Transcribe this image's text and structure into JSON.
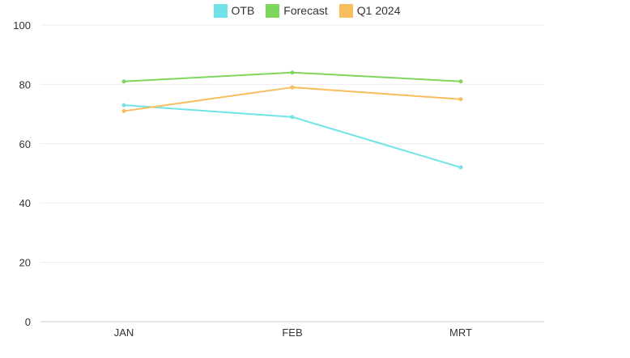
{
  "chart_data": {
    "type": "line",
    "categories": [
      "JAN",
      "FEB",
      "MRT"
    ],
    "series": [
      {
        "name": "OTB",
        "values": [
          73,
          69,
          52
        ],
        "color": "#71e3e8"
      },
      {
        "name": "Forecast",
        "values": [
          81,
          84,
          81
        ],
        "color": "#7fd65e"
      },
      {
        "name": "Q1 2024",
        "values": [
          71,
          79,
          75
        ],
        "color": "#f6be5c"
      }
    ],
    "title": "",
    "xlabel": "",
    "ylabel": "",
    "ylim": [
      0,
      100
    ],
    "yticks": [
      "0",
      "20",
      "40",
      "60",
      "80",
      "100"
    ],
    "grid": true,
    "legend_position": "top-center"
  }
}
